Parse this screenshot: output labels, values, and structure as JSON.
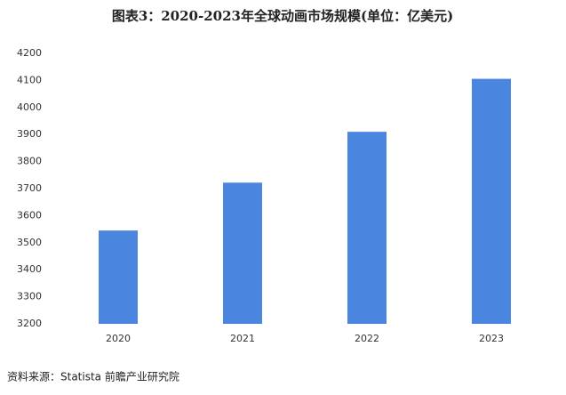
{
  "chart_data": {
    "type": "bar",
    "title": "图表3：2020-2023年全球动画市场规模(单位：亿美元)",
    "categories": [
      "2020",
      "2021",
      "2022",
      "2023"
    ],
    "values": [
      3545,
      3722,
      3910,
      4106
    ],
    "color": "#4a86e0",
    "ylim": [
      3200,
      4200
    ],
    "yticks": [
      3200,
      3300,
      3400,
      3500,
      3600,
      3700,
      3800,
      3900,
      4000,
      4100,
      4200
    ],
    "grid": false,
    "source": "资料来源：Statista 前瞻产业研究院"
  }
}
